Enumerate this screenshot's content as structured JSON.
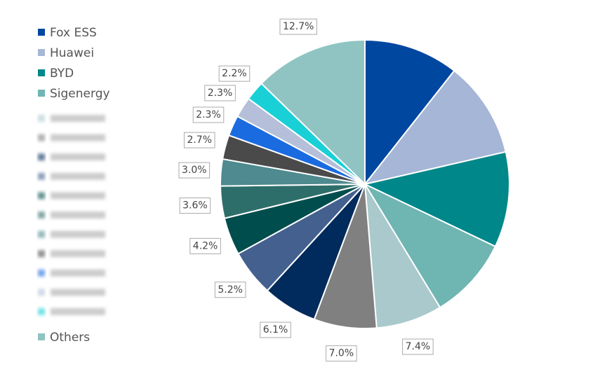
{
  "chart_data": {
    "type": "pie",
    "categories": [
      "Fox ESS",
      "Huawei",
      "BYD",
      "Sigenergy",
      null,
      null,
      null,
      null,
      null,
      null,
      null,
      null,
      null,
      null,
      null,
      "Others"
    ],
    "values": [
      10.6,
      10.8,
      10.7,
      9.2,
      7.4,
      7.0,
      6.1,
      5.2,
      4.2,
      3.6,
      3.0,
      2.7,
      2.3,
      2.3,
      2.2,
      12.7
    ],
    "value_labels": [
      null,
      null,
      null,
      null,
      "7.4%",
      "7.0%",
      "6.1%",
      "5.2%",
      "4.2%",
      "3.6%",
      "3.0%",
      "2.7%",
      "2.3%",
      "2.3%",
      "2.2%",
      "12.7%"
    ],
    "colors": [
      "#0047a0",
      "#a6b6d6",
      "#00878a",
      "#6fb5b2",
      "#a9c9cc",
      "#808080",
      "#002b5c",
      "#44608f",
      "#004d4d",
      "#2e6e6a",
      "#4e8a8f",
      "#4a4a4a",
      "#1a6be0",
      "#b5bfd9",
      "#19d0d6",
      "#8fc4c2"
    ],
    "legend": "left"
  }
}
